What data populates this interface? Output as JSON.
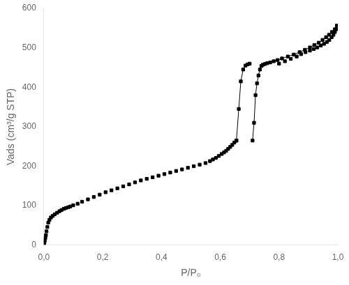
{
  "chart_data": {
    "type": "line",
    "xlabel": "P/P₀",
    "ylabel": "Vads (cm³/g STP)",
    "xlim": [
      0.0,
      1.0
    ],
    "ylim": [
      0,
      600
    ],
    "xticks": [
      {
        "value": 0.0,
        "label": "0,0"
      },
      {
        "value": 0.2,
        "label": "0,2"
      },
      {
        "value": 0.4,
        "label": "0,4"
      },
      {
        "value": 0.6,
        "label": "0,6"
      },
      {
        "value": 0.8,
        "label": "0,8"
      },
      {
        "value": 1.0,
        "label": "1,0"
      }
    ],
    "yticks": [
      0,
      100,
      200,
      300,
      400,
      500,
      600
    ],
    "grid": false,
    "series": [
      {
        "color": "black",
        "marker": "square",
        "line_style": "none",
        "x": [
          0.001,
          0.002,
          0.003,
          0.005,
          0.007,
          0.009,
          0.012,
          0.015,
          0.019,
          0.024,
          0.03,
          0.037,
          0.045,
          0.053,
          0.06,
          0.068,
          0.075,
          0.083,
          0.09,
          0.1,
          0.115,
          0.13,
          0.15,
          0.17,
          0.19,
          0.21,
          0.23,
          0.25,
          0.27,
          0.29,
          0.31,
          0.33,
          0.35,
          0.37,
          0.39,
          0.41,
          0.43,
          0.45,
          0.47,
          0.49,
          0.51,
          0.53,
          0.55,
          0.565,
          0.575,
          0.585,
          0.595,
          0.605,
          0.613,
          0.62,
          0.627,
          0.634,
          0.641,
          0.648,
          0.655,
          0.8,
          0.82,
          0.84,
          0.86,
          0.875,
          0.89,
          0.905,
          0.918,
          0.93,
          0.942,
          0.953,
          0.963,
          0.971,
          0.979,
          0.985,
          0.99,
          0.994,
          0.997
        ],
        "values": [
          5,
          8,
          12,
          18,
          25,
          35,
          46,
          57,
          64,
          70,
          74,
          78,
          82,
          86,
          89,
          92,
          94,
          96,
          98,
          101,
          105,
          110,
          116,
          122,
          128,
          134,
          139,
          144,
          149,
          154,
          159,
          164,
          168,
          172,
          176,
          180,
          184,
          188,
          192,
          196,
          200,
          204,
          208,
          213,
          217,
          221,
          226,
          231,
          235,
          239,
          244,
          249,
          254,
          260,
          265,
          460,
          466,
          472,
          478,
          484,
          489,
          493,
          497,
          501,
          506,
          510,
          515,
          520,
          527,
          533,
          540,
          547,
          556
        ]
      },
      {
        "color": "black",
        "marker": "square",
        "line_style": "solid",
        "x": [
          0.655,
          0.663,
          0.67,
          0.678,
          0.686,
          0.693,
          0.7
        ],
        "values": [
          265,
          345,
          415,
          445,
          455,
          458,
          460
        ]
      },
      {
        "color": "black",
        "marker": "square",
        "line_style": "solid",
        "x": [
          0.997,
          0.99,
          0.98,
          0.97,
          0.96,
          0.948,
          0.935,
          0.92,
          0.905,
          0.888,
          0.87,
          0.85,
          0.83,
          0.81,
          0.795,
          0.782,
          0.77,
          0.76,
          0.752,
          0.745,
          0.74,
          0.735,
          0.73,
          0.725,
          0.72,
          0.715,
          0.71
        ],
        "values": [
          556,
          547,
          540,
          533,
          527,
          520,
          513,
          507,
          501,
          495,
          489,
          483,
          478,
          473,
          469,
          466,
          463,
          461,
          459,
          457,
          454,
          445,
          430,
          410,
          380,
          310,
          265
        ]
      }
    ]
  }
}
